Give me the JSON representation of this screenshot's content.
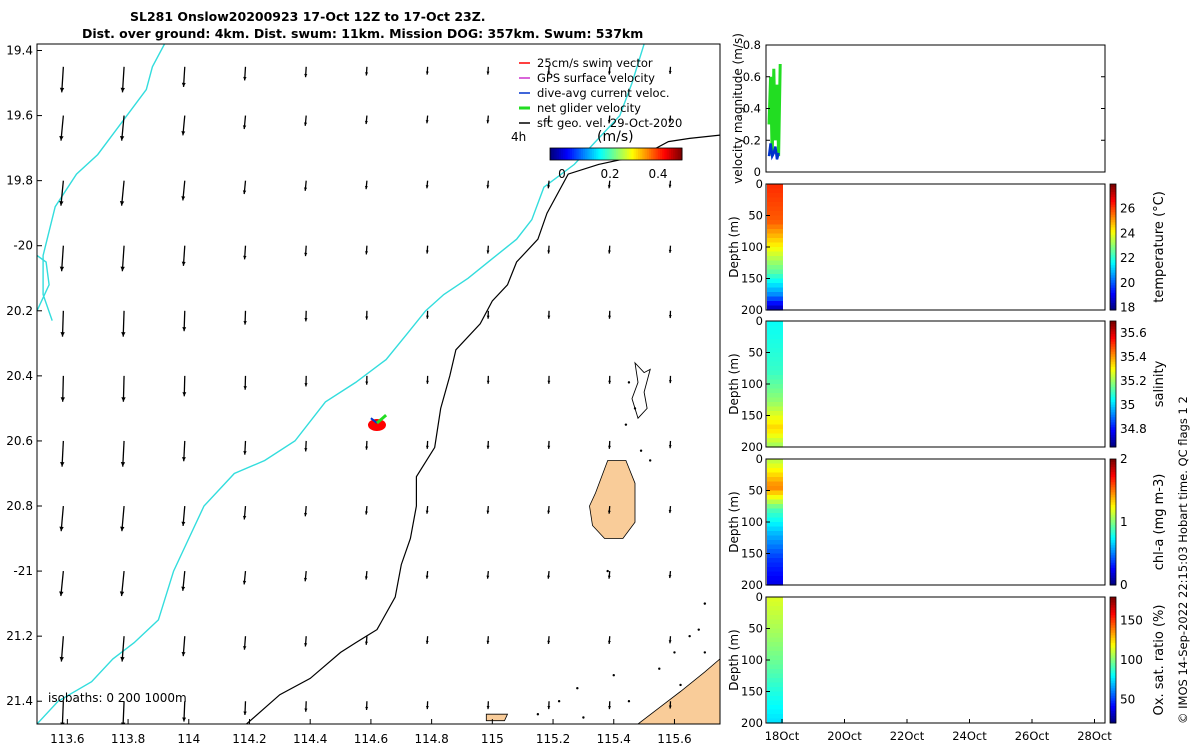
{
  "title_line1": "SL281 Onslow20200923 17-Oct 12Z to 17-Oct 23Z.",
  "title_line2": "Dist. over ground: 4km. Dist. swum: 11km. Mission DOG: 357km. Swum: 537km",
  "credit": "© IMOS 14-Sep-2022 22:15:03 Hobart time. QC flags 1  2",
  "colors": {
    "coast": "#000000",
    "isobath_200": "#33dddd",
    "land": "#f9cc99",
    "swim_vector": "#ff0000",
    "gps_velocity": "#cc33cc",
    "dive_avg": "#0033cc",
    "net_glider": "#22dd22",
    "geo_velocity": "#000000"
  },
  "chart_data": [
    {
      "type": "map",
      "name": "track",
      "xlim": [
        113.5,
        115.75
      ],
      "ylim": [
        -21.47,
        -19.38
      ],
      "xticks": [
        113.6,
        113.8,
        114,
        114.2,
        114.4,
        114.6,
        114.8,
        115,
        115.2,
        115.4,
        115.6
      ],
      "xtick_labels": [
        "113.6",
        "113.8",
        "114",
        "114.2",
        "114.4",
        "114.6",
        "114.8",
        "115",
        "115.2",
        "115.4",
        "115.6"
      ],
      "yticks": [
        -19.4,
        -19.6,
        -19.8,
        -20,
        -20.2,
        -20.4,
        -20.6,
        -20.8,
        -21,
        -21.2,
        -21.4
      ],
      "ytick_labels": [
        "19.4",
        "19.6",
        "19.8",
        "-20",
        "20.2",
        "20.4",
        "20.6",
        "20.8",
        "-21",
        "21.2",
        "21.4"
      ],
      "legend": {
        "placement": "top-right",
        "items": [
          {
            "label": "25cm/s swim vector",
            "color": "#ff0000"
          },
          {
            "label": "GPS surface velocity",
            "color": "#cc33cc"
          },
          {
            "label": "dive-avg current veloc.",
            "color": "#0033cc"
          },
          {
            "label": "net glider velocity",
            "color": "#22dd22"
          },
          {
            "label": "sfc geo. vel. 29-Oct-2020",
            "color": "#000000"
          }
        ]
      },
      "colorbar": {
        "label": "(m/s)",
        "ticks": [
          "0",
          "0.2",
          "0.4"
        ],
        "range": [
          -0.05,
          0.5
        ],
        "note": "4h"
      },
      "isobaths_note": "isobaths: 0   200  1000m",
      "isobath_200": [
        [
          113.92,
          -19.38
        ],
        [
          113.88,
          -19.45
        ],
        [
          113.86,
          -19.52
        ],
        [
          113.78,
          -19.62
        ],
        [
          113.7,
          -19.72
        ],
        [
          113.63,
          -19.78
        ],
        [
          113.56,
          -19.88
        ],
        [
          113.52,
          -20.03
        ],
        [
          113.52,
          -20.15
        ],
        [
          113.55,
          -20.23
        ]
      ],
      "isobath_200_b": [
        [
          113.5,
          -20.03
        ],
        [
          113.53,
          -20.05
        ],
        [
          113.54,
          -20.12
        ],
        [
          113.5,
          -20.2
        ]
      ],
      "isobath_1000": [
        [
          113.5,
          -21.47
        ],
        [
          113.57,
          -21.4
        ],
        [
          113.68,
          -21.34
        ],
        [
          113.75,
          -21.27
        ],
        [
          113.82,
          -21.22
        ],
        [
          113.9,
          -21.15
        ],
        [
          113.95,
          -21.0
        ],
        [
          114.0,
          -20.9
        ],
        [
          114.05,
          -20.8
        ],
        [
          114.15,
          -20.7
        ],
        [
          114.25,
          -20.66
        ],
        [
          114.35,
          -20.6
        ],
        [
          114.45,
          -20.48
        ],
        [
          114.55,
          -20.42
        ],
        [
          114.65,
          -20.35
        ],
        [
          114.72,
          -20.27
        ],
        [
          114.78,
          -20.2
        ],
        [
          114.84,
          -20.15
        ],
        [
          114.92,
          -20.1
        ],
        [
          115.0,
          -20.04
        ],
        [
          115.08,
          -19.98
        ],
        [
          115.13,
          -19.92
        ],
        [
          115.17,
          -19.82
        ],
        [
          115.27,
          -19.75
        ],
        [
          115.35,
          -19.67
        ],
        [
          115.42,
          -19.6
        ],
        [
          115.46,
          -19.5
        ],
        [
          115.5,
          -19.38
        ]
      ],
      "coast": [
        [
          114.19,
          -21.47
        ],
        [
          114.3,
          -21.38
        ],
        [
          114.4,
          -21.33
        ],
        [
          114.5,
          -21.25
        ],
        [
          114.55,
          -21.22
        ],
        [
          114.62,
          -21.18
        ],
        [
          114.68,
          -21.08
        ],
        [
          114.7,
          -20.98
        ],
        [
          114.73,
          -20.9
        ],
        [
          114.75,
          -20.8
        ],
        [
          114.75,
          -20.71
        ],
        [
          114.81,
          -20.62
        ],
        [
          114.83,
          -20.5
        ],
        [
          114.86,
          -20.4
        ],
        [
          114.88,
          -20.32
        ],
        [
          114.96,
          -20.24
        ],
        [
          115.0,
          -20.17
        ],
        [
          115.05,
          -20.12
        ],
        [
          115.08,
          -20.05
        ],
        [
          115.15,
          -19.98
        ],
        [
          115.18,
          -19.9
        ],
        [
          115.25,
          -19.78
        ],
        [
          115.35,
          -19.75
        ],
        [
          115.5,
          -19.72
        ],
        [
          115.58,
          -19.68
        ],
        [
          115.65,
          -19.67
        ],
        [
          115.75,
          -19.66
        ]
      ],
      "land": [
        [
          [
            115.34,
            -20.76
          ],
          [
            115.38,
            -20.66
          ],
          [
            115.44,
            -20.66
          ],
          [
            115.47,
            -20.73
          ],
          [
            115.47,
            -20.85
          ],
          [
            115.43,
            -20.9
          ],
          [
            115.37,
            -20.9
          ],
          [
            115.33,
            -20.86
          ],
          [
            115.32,
            -20.8
          ]
        ],
        [
          [
            115.48,
            -21.47
          ],
          [
            115.55,
            -21.42
          ],
          [
            115.62,
            -21.37
          ],
          [
            115.7,
            -21.31
          ],
          [
            115.75,
            -21.27
          ],
          [
            115.75,
            -21.47
          ]
        ],
        [
          [
            114.98,
            -21.44
          ],
          [
            115.05,
            -21.44
          ],
          [
            115.04,
            -21.46
          ],
          [
            114.98,
            -21.46
          ]
        ]
      ],
      "glider_points": [
        [
          114.6,
          -20.53
        ],
        [
          114.62,
          -20.545
        ],
        [
          114.65,
          -20.53
        ]
      ],
      "vectors_grid_x": [
        113.6,
        113.8,
        114,
        114.2,
        114.4,
        114.6,
        114.8,
        115,
        115.2,
        115.4,
        115.6
      ],
      "vectors_grid_y": [
        -19.45,
        -19.6,
        -19.8,
        -20,
        -20.2,
        -20.4,
        -20.6,
        -20.8,
        -21,
        -21.2,
        -21.4
      ],
      "vector_strength_west_to_east": [
        1.0,
        1.0,
        0.75,
        0.45,
        0.3,
        0.22,
        0.18,
        0.18,
        0.18,
        0.18,
        0.15
      ]
    },
    {
      "type": "line",
      "name": "velocity",
      "ylabel": "velocity magnitude (m/s)",
      "ylim": [
        0,
        0.8
      ],
      "yticks": [
        0,
        0.2,
        0.4,
        0.6,
        0.8
      ],
      "series": [
        {
          "color": "#22dd22",
          "values": [
            0.3,
            0.6,
            0.1,
            0.65,
            0.2,
            0.55,
            0.1,
            0.68
          ]
        },
        {
          "color": "#0033cc",
          "values": [
            0.1,
            0.18,
            0.1,
            0.12,
            0.16,
            0.08,
            0.12
          ]
        }
      ]
    },
    {
      "type": "heatmap",
      "name": "temperature",
      "ylabel": "Depth (m)",
      "ylim": [
        200,
        0
      ],
      "yticks": [
        0,
        50,
        100,
        150,
        200
      ],
      "cbar_label": "temperature (°C)",
      "cbar_range": [
        17.8,
        28
      ],
      "cbar_ticks": [
        18,
        20,
        22,
        24,
        26
      ],
      "profile": [
        [
          0,
          26.3
        ],
        [
          60,
          25.8
        ],
        [
          100,
          24.2
        ],
        [
          140,
          22.5
        ],
        [
          175,
          20.5
        ],
        [
          200,
          18.2
        ]
      ]
    },
    {
      "type": "heatmap",
      "name": "salinity",
      "ylabel": "Depth (m)",
      "ylim": [
        200,
        0
      ],
      "yticks": [
        0,
        50,
        100,
        150,
        200
      ],
      "cbar_label": "salinity",
      "cbar_range": [
        34.65,
        35.7
      ],
      "cbar_ticks": [
        34.8,
        35,
        35.2,
        35.4,
        35.6
      ],
      "profile": [
        [
          0,
          35.05
        ],
        [
          80,
          35.1
        ],
        [
          130,
          35.2
        ],
        [
          170,
          35.35
        ],
        [
          200,
          35.2
        ]
      ]
    },
    {
      "type": "heatmap",
      "name": "chl",
      "ylabel": "Depth (m)",
      "ylim": [
        200,
        0
      ],
      "yticks": [
        0,
        50,
        100,
        150,
        200
      ],
      "cbar_label": "chl-a (mg m-3)",
      "cbar_range": [
        0,
        2
      ],
      "cbar_ticks": [
        0,
        1,
        2
      ],
      "profile": [
        [
          0,
          1.1
        ],
        [
          45,
          1.5
        ],
        [
          80,
          0.9
        ],
        [
          120,
          0.6
        ],
        [
          160,
          0.35
        ],
        [
          200,
          0.2
        ]
      ]
    },
    {
      "type": "heatmap",
      "name": "oxygen",
      "ylabel": "Depth (m)",
      "ylim": [
        200,
        0
      ],
      "yticks": [
        0,
        50,
        100,
        150,
        200
      ],
      "cbar_label": "Ox. sat. ratio (%)",
      "cbar_range": [
        20,
        180
      ],
      "cbar_ticks": [
        50,
        100,
        150
      ],
      "profile": [
        [
          0,
          115
        ],
        [
          60,
          105
        ],
        [
          110,
          95
        ],
        [
          150,
          85
        ],
        [
          200,
          75
        ]
      ],
      "xtick_labels": [
        "18Oct",
        "20Oct",
        "22Oct",
        "24Oct",
        "26Oct",
        "28Oct"
      ]
    }
  ]
}
